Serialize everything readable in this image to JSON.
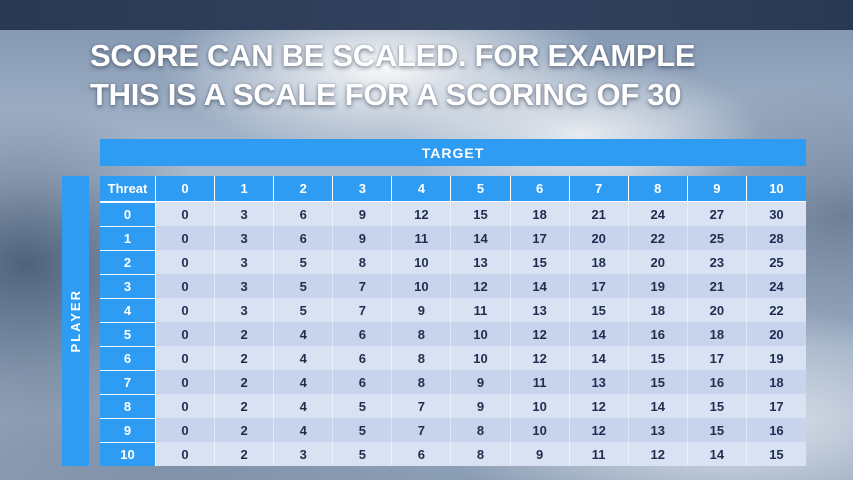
{
  "slide": {
    "title_line1": "SCORE CAN BE SCALED. FOR EXAMPLE",
    "title_line2": "THIS IS A SCALE FOR A SCORING OF 30"
  },
  "table": {
    "target_label": "TARGET",
    "player_label": "PLAYER",
    "corner_label": "Threat",
    "column_headers": [
      "0",
      "1",
      "2",
      "3",
      "4",
      "5",
      "6",
      "7",
      "8",
      "9",
      "10"
    ],
    "rows": [
      {
        "label": "0",
        "values": [
          0,
          3,
          6,
          9,
          12,
          15,
          18,
          21,
          24,
          27,
          30
        ]
      },
      {
        "label": "1",
        "values": [
          0,
          3,
          6,
          9,
          11,
          14,
          17,
          20,
          22,
          25,
          28
        ]
      },
      {
        "label": "2",
        "values": [
          0,
          3,
          5,
          8,
          10,
          13,
          15,
          18,
          20,
          23,
          25
        ]
      },
      {
        "label": "3",
        "values": [
          0,
          3,
          5,
          7,
          10,
          12,
          14,
          17,
          19,
          21,
          24
        ]
      },
      {
        "label": "4",
        "values": [
          0,
          3,
          5,
          7,
          9,
          11,
          13,
          15,
          18,
          20,
          22
        ]
      },
      {
        "label": "5",
        "values": [
          0,
          2,
          4,
          6,
          8,
          10,
          12,
          14,
          16,
          18,
          20
        ]
      },
      {
        "label": "6",
        "values": [
          0,
          2,
          4,
          6,
          8,
          10,
          12,
          14,
          15,
          17,
          19
        ]
      },
      {
        "label": "7",
        "values": [
          0,
          2,
          4,
          6,
          8,
          9,
          11,
          13,
          15,
          16,
          18
        ]
      },
      {
        "label": "8",
        "values": [
          0,
          2,
          4,
          5,
          7,
          9,
          10,
          12,
          14,
          15,
          17
        ]
      },
      {
        "label": "9",
        "values": [
          0,
          2,
          4,
          5,
          7,
          8,
          10,
          12,
          13,
          15,
          16
        ]
      },
      {
        "label": "10",
        "values": [
          0,
          2,
          3,
          5,
          6,
          8,
          9,
          11,
          12,
          14,
          15
        ]
      }
    ]
  },
  "colors": {
    "accent_blue": "#2f9cf3",
    "band_light": "#d9e2f3",
    "band_dark": "#c7d4ec",
    "top_bar": "#2e3c57",
    "title_text": "#ffffff"
  }
}
